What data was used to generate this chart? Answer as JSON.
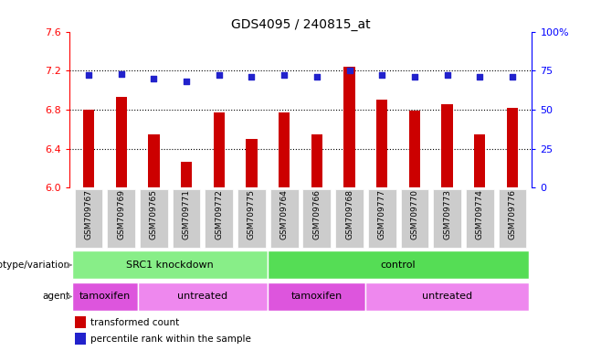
{
  "title": "GDS4095 / 240815_at",
  "samples": [
    "GSM709767",
    "GSM709769",
    "GSM709765",
    "GSM709771",
    "GSM709772",
    "GSM709775",
    "GSM709764",
    "GSM709766",
    "GSM709768",
    "GSM709777",
    "GSM709770",
    "GSM709773",
    "GSM709774",
    "GSM709776"
  ],
  "bar_values": [
    6.8,
    6.93,
    6.55,
    6.27,
    6.77,
    6.5,
    6.77,
    6.55,
    7.24,
    6.9,
    6.79,
    6.86,
    6.55,
    6.82
  ],
  "percentile_values": [
    72,
    73,
    70,
    68,
    72,
    71,
    72,
    71,
    75,
    72,
    71,
    72,
    71,
    71
  ],
  "bar_color": "#cc0000",
  "dot_color": "#2222cc",
  "ylim_left": [
    6.0,
    7.6
  ],
  "ylim_right": [
    0,
    100
  ],
  "yticks_left": [
    6.0,
    6.4,
    6.8,
    7.2,
    7.6
  ],
  "yticks_right": [
    0,
    25,
    50,
    75,
    100
  ],
  "ytick_labels_right": [
    "0",
    "25",
    "50",
    "75",
    "100%"
  ],
  "hlines": [
    6.4,
    6.8,
    7.2
  ],
  "genotype_groups": [
    {
      "label": "SRC1 knockdown",
      "start": 0,
      "end": 6,
      "color": "#88ee88"
    },
    {
      "label": "control",
      "start": 6,
      "end": 14,
      "color": "#55dd55"
    }
  ],
  "agent_groups": [
    {
      "label": "tamoxifen",
      "start": 0,
      "end": 2,
      "color": "#dd55dd"
    },
    {
      "label": "untreated",
      "start": 2,
      "end": 6,
      "color": "#ee88ee"
    },
    {
      "label": "tamoxifen",
      "start": 6,
      "end": 9,
      "color": "#dd55dd"
    },
    {
      "label": "untreated",
      "start": 9,
      "end": 14,
      "color": "#ee88ee"
    }
  ],
  "genotype_label": "genotype/variation",
  "agent_label": "agent",
  "legend_red_label": "transformed count",
  "legend_blue_label": "percentile rank within the sample",
  "tick_bg_color": "#cccccc",
  "bar_width": 0.35
}
